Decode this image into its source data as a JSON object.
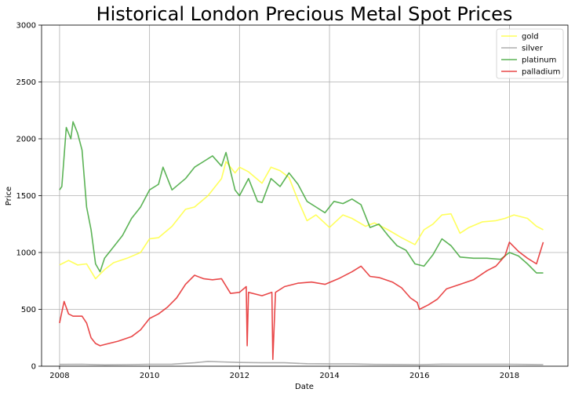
{
  "chart_data": {
    "type": "line",
    "title": "Historical London Precious Metal Spot Prices",
    "xlabel": "Date",
    "ylabel": "Price",
    "xlim": [
      2007.6,
      2019.3
    ],
    "ylim": [
      0,
      3000
    ],
    "xticks": [
      2008,
      2010,
      2012,
      2014,
      2016,
      2018
    ],
    "yticks": [
      0,
      500,
      1000,
      1500,
      2000,
      2500,
      3000
    ],
    "grid": true,
    "legend_position": "top-right",
    "series": [
      {
        "name": "gold",
        "color": "#ffff33",
        "x": [
          2008.0,
          2008.2,
          2008.4,
          2008.6,
          2008.8,
          2009.0,
          2009.2,
          2009.5,
          2009.8,
          2010.0,
          2010.2,
          2010.5,
          2010.8,
          2011.0,
          2011.3,
          2011.6,
          2011.7,
          2011.9,
          2012.0,
          2012.2,
          2012.5,
          2012.7,
          2012.9,
          2013.1,
          2013.3,
          2013.5,
          2013.7,
          2014.0,
          2014.3,
          2014.5,
          2014.8,
          2015.0,
          2015.3,
          2015.6,
          2015.9,
          2016.1,
          2016.3,
          2016.5,
          2016.7,
          2016.9,
          2017.1,
          2017.4,
          2017.7,
          2017.9,
          2018.1,
          2018.4,
          2018.6,
          2018.75
        ],
        "values": [
          890,
          930,
          890,
          900,
          770,
          850,
          910,
          950,
          1000,
          1120,
          1130,
          1230,
          1380,
          1400,
          1500,
          1650,
          1800,
          1700,
          1750,
          1710,
          1610,
          1750,
          1720,
          1660,
          1460,
          1280,
          1330,
          1220,
          1330,
          1300,
          1230,
          1260,
          1200,
          1130,
          1070,
          1200,
          1250,
          1330,
          1340,
          1170,
          1220,
          1270,
          1280,
          1300,
          1330,
          1300,
          1230,
          1200
        ]
      },
      {
        "name": "silver",
        "color": "#999999",
        "x": [
          2008.0,
          2008.5,
          2009.0,
          2009.5,
          2010.0,
          2010.5,
          2011.0,
          2011.3,
          2011.6,
          2012.0,
          2012.5,
          2013.0,
          2013.5,
          2014.0,
          2014.5,
          2015.0,
          2015.5,
          2016.0,
          2016.5,
          2017.0,
          2017.5,
          2018.0,
          2018.5,
          2018.75
        ],
        "values": [
          16,
          17,
          12,
          14,
          17,
          18,
          30,
          42,
          38,
          33,
          30,
          30,
          22,
          20,
          20,
          16,
          15,
          14,
          18,
          17,
          17,
          17,
          15,
          14
        ]
      },
      {
        "name": "platinum",
        "color": "#33a02c",
        "x": [
          2008.0,
          2008.05,
          2008.15,
          2008.25,
          2008.3,
          2008.4,
          2008.5,
          2008.6,
          2008.7,
          2008.8,
          2008.9,
          2009.0,
          2009.2,
          2009.4,
          2009.6,
          2009.8,
          2010.0,
          2010.2,
          2010.3,
          2010.5,
          2010.8,
          2011.0,
          2011.2,
          2011.4,
          2011.6,
          2011.7,
          2011.9,
          2012.0,
          2012.2,
          2012.4,
          2012.5,
          2012.7,
          2012.9,
          2013.1,
          2013.3,
          2013.5,
          2013.7,
          2013.9,
          2014.1,
          2014.3,
          2014.5,
          2014.7,
          2014.9,
          2015.1,
          2015.3,
          2015.5,
          2015.7,
          2015.9,
          2016.1,
          2016.3,
          2016.5,
          2016.7,
          2016.9,
          2017.2,
          2017.5,
          2017.8,
          2018.0,
          2018.2,
          2018.4,
          2018.6,
          2018.75
        ],
        "values": [
          1550,
          1580,
          2100,
          2000,
          2150,
          2050,
          1900,
          1400,
          1200,
          900,
          830,
          950,
          1050,
          1150,
          1300,
          1400,
          1550,
          1600,
          1750,
          1550,
          1650,
          1750,
          1800,
          1850,
          1760,
          1880,
          1550,
          1500,
          1650,
          1450,
          1440,
          1650,
          1580,
          1700,
          1600,
          1450,
          1400,
          1350,
          1450,
          1430,
          1470,
          1420,
          1220,
          1250,
          1150,
          1060,
          1020,
          900,
          880,
          980,
          1120,
          1060,
          960,
          950,
          950,
          940,
          1000,
          970,
          900,
          820,
          820
        ]
      },
      {
        "name": "palladium",
        "color": "#e41a1c",
        "x": [
          2008.0,
          2008.1,
          2008.2,
          2008.3,
          2008.5,
          2008.6,
          2008.7,
          2008.8,
          2008.9,
          2009.0,
          2009.3,
          2009.6,
          2009.8,
          2010.0,
          2010.2,
          2010.4,
          2010.6,
          2010.8,
          2011.0,
          2011.2,
          2011.4,
          2011.6,
          2011.8,
          2012.0,
          2012.15,
          2012.17,
          2012.2,
          2012.5,
          2012.72,
          2012.74,
          2012.8,
          2013.0,
          2013.3,
          2013.6,
          2013.9,
          2014.2,
          2014.5,
          2014.7,
          2014.9,
          2015.1,
          2015.4,
          2015.6,
          2015.8,
          2015.95,
          2016.0,
          2016.2,
          2016.4,
          2016.6,
          2016.9,
          2017.2,
          2017.5,
          2017.7,
          2017.9,
          2018.0,
          2018.2,
          2018.4,
          2018.6,
          2018.75
        ],
        "values": [
          380,
          570,
          460,
          440,
          440,
          380,
          250,
          200,
          180,
          190,
          220,
          260,
          320,
          420,
          460,
          520,
          600,
          720,
          800,
          770,
          760,
          770,
          640,
          650,
          700,
          180,
          650,
          620,
          650,
          60,
          650,
          700,
          730,
          740,
          720,
          770,
          830,
          880,
          790,
          780,
          740,
          690,
          600,
          560,
          500,
          540,
          590,
          680,
          720,
          760,
          840,
          880,
          970,
          1090,
          1010,
          950,
          900,
          1090
        ]
      }
    ]
  }
}
